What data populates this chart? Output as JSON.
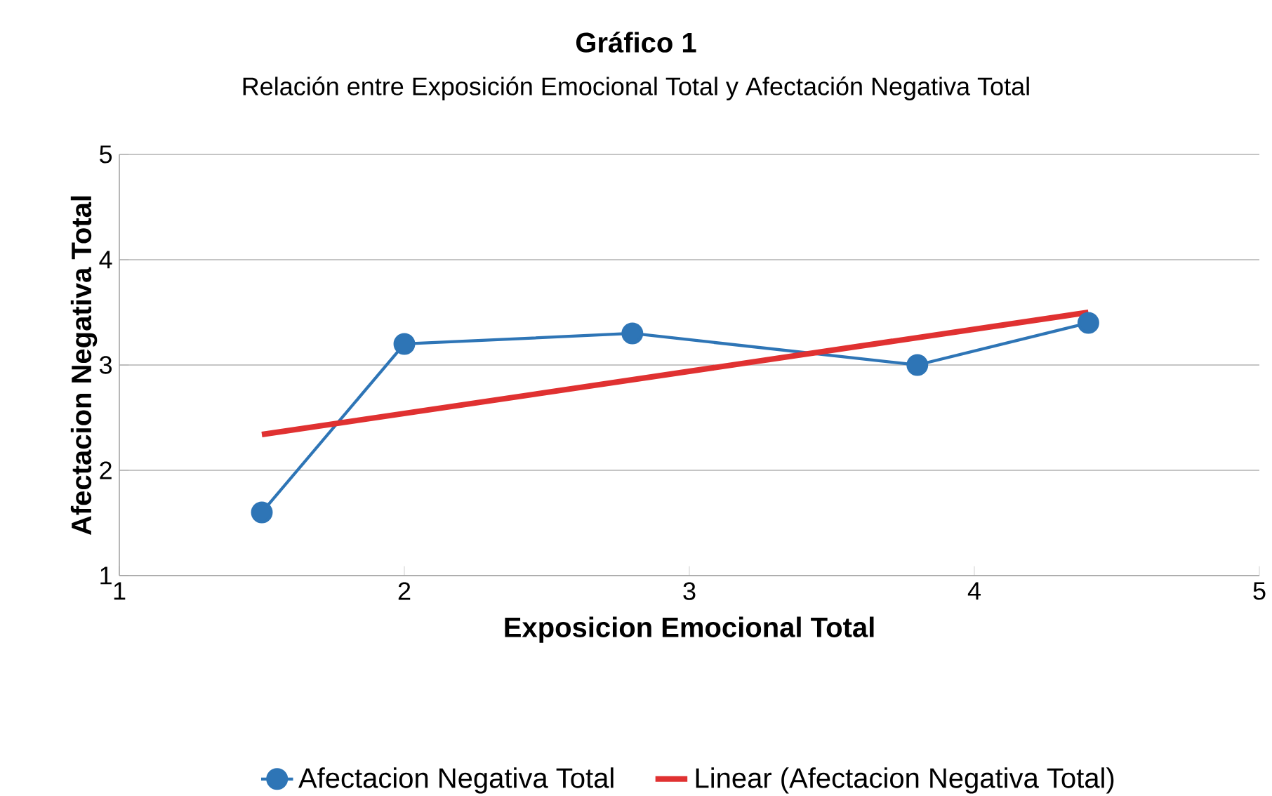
{
  "chart_data": {
    "type": "line",
    "title": "Gráfico 1",
    "subtitle": "Relación entre Exposición Emocional Total y Afectación Negativa Total",
    "xlabel": "Exposicion Emocional Total",
    "ylabel": "Afectacion Negativa Total",
    "xlim": [
      1,
      5
    ],
    "xticks": [
      1,
      2,
      3,
      4,
      5
    ],
    "ylim": [
      1,
      5
    ],
    "yticks": [
      1,
      2,
      3,
      4,
      5
    ],
    "grid": "y",
    "legend": "bottom",
    "marker": "circle",
    "line_style": "solid",
    "series": [
      {
        "name": "Afectacion Negativa Total",
        "color": "#2e75b6",
        "x": [
          1.5,
          2,
          2.8,
          3.8,
          4.4
        ],
        "values": [
          1.6,
          3.2,
          3.3,
          3.0,
          3.4
        ]
      },
      {
        "name": "Linear (Afectacion Negativa Total)",
        "color": "#e03131",
        "type": "line",
        "marker": "none",
        "x": [
          1.5,
          4.4
        ],
        "values": [
          2.34,
          3.5
        ]
      }
    ]
  }
}
